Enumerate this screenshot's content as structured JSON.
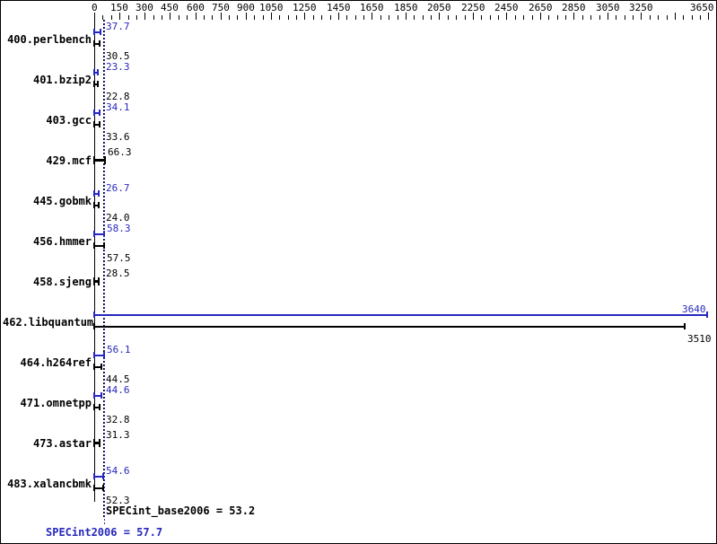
{
  "axis": {
    "tick_values": [
      0,
      150,
      300,
      450,
      600,
      750,
      900,
      1050,
      1250,
      1450,
      1650,
      1850,
      2050,
      2250,
      2450,
      2650,
      2850,
      3050,
      3250,
      3650
    ],
    "tick_labels": [
      "0",
      "150",
      "300",
      "450",
      "600",
      "750",
      "900",
      "1050",
      "1250",
      "1450",
      "1650",
      "1850",
      "2050",
      "2250",
      "2450",
      "2650",
      "2850",
      "3050",
      "3250",
      "3650"
    ],
    "major_unlabeled": [
      3450
    ],
    "minor_step": 50,
    "max": 3700
  },
  "benchmarks": [
    {
      "name": "400.perlbench",
      "peak": "37.7",
      "base": "30.5"
    },
    {
      "name": "401.bzip2",
      "peak": "23.3",
      "base": "22.8"
    },
    {
      "name": "403.gcc",
      "peak": "34.1",
      "base": "33.6"
    },
    {
      "name": "429.mcf",
      "single": "66.3"
    },
    {
      "name": "445.gobmk",
      "peak": "26.7",
      "base": "24.0"
    },
    {
      "name": "456.hmmer",
      "peak": "58.3",
      "base": "57.5"
    },
    {
      "name": "458.sjeng",
      "single": "28.5"
    },
    {
      "name": "462.libquantum",
      "peak": "3640",
      "base": "3510"
    },
    {
      "name": "464.h264ref",
      "peak": "56.1",
      "base": "44.5"
    },
    {
      "name": "471.omnetpp",
      "peak": "44.6",
      "base": "32.8"
    },
    {
      "name": "473.astar",
      "single": "31.3"
    },
    {
      "name": "483.xalancbmk",
      "peak": "54.6",
      "base": "52.3"
    }
  ],
  "summary": {
    "base_text": "SPECint_base2006 = 53.2",
    "peak_text": "SPECint2006 = 57.7",
    "base_value": 53.2,
    "peak_value": 57.7
  },
  "colors": {
    "peak": "#2828be",
    "base": "#000000"
  },
  "chart_data": {
    "type": "bar",
    "orientation": "horizontal",
    "title": "",
    "xlabel": "",
    "ylabel": "",
    "xlim": [
      0,
      3700
    ],
    "grid": false,
    "legend_position": "none",
    "categories": [
      "400.perlbench",
      "401.bzip2",
      "403.gcc",
      "429.mcf",
      "445.gobmk",
      "456.hmmer",
      "458.sjeng",
      "462.libquantum",
      "464.h264ref",
      "471.omnetpp",
      "473.astar",
      "483.xalancbmk"
    ],
    "series": [
      {
        "name": "SPECint2006 (peak)",
        "color": "#2828be",
        "values": [
          37.7,
          23.3,
          34.1,
          null,
          26.7,
          58.3,
          null,
          3640,
          56.1,
          44.6,
          null,
          54.6
        ]
      },
      {
        "name": "SPECint_base2006 (base)",
        "color": "#000000",
        "values": [
          30.5,
          22.8,
          33.6,
          66.3,
          24.0,
          57.5,
          28.5,
          3510,
          44.5,
          32.8,
          31.3,
          52.3
        ]
      }
    ],
    "x_tick_labels": [
      "0",
      "150",
      "300",
      "450",
      "600",
      "750",
      "900",
      "1050",
      "1250",
      "1450",
      "1650",
      "1850",
      "2050",
      "2250",
      "2450",
      "2650",
      "2850",
      "3050",
      "3250",
      "3650"
    ],
    "reference_lines": [
      {
        "label": "SPECint_base2006",
        "value": 53.2,
        "color": "#000000",
        "style": "dotted"
      },
      {
        "label": "SPECint2006",
        "value": 57.7,
        "color": "#2828be",
        "style": "dotted"
      }
    ],
    "annotations": [
      "SPECint_base2006 = 53.2",
      "SPECint2006 = 57.7"
    ]
  }
}
